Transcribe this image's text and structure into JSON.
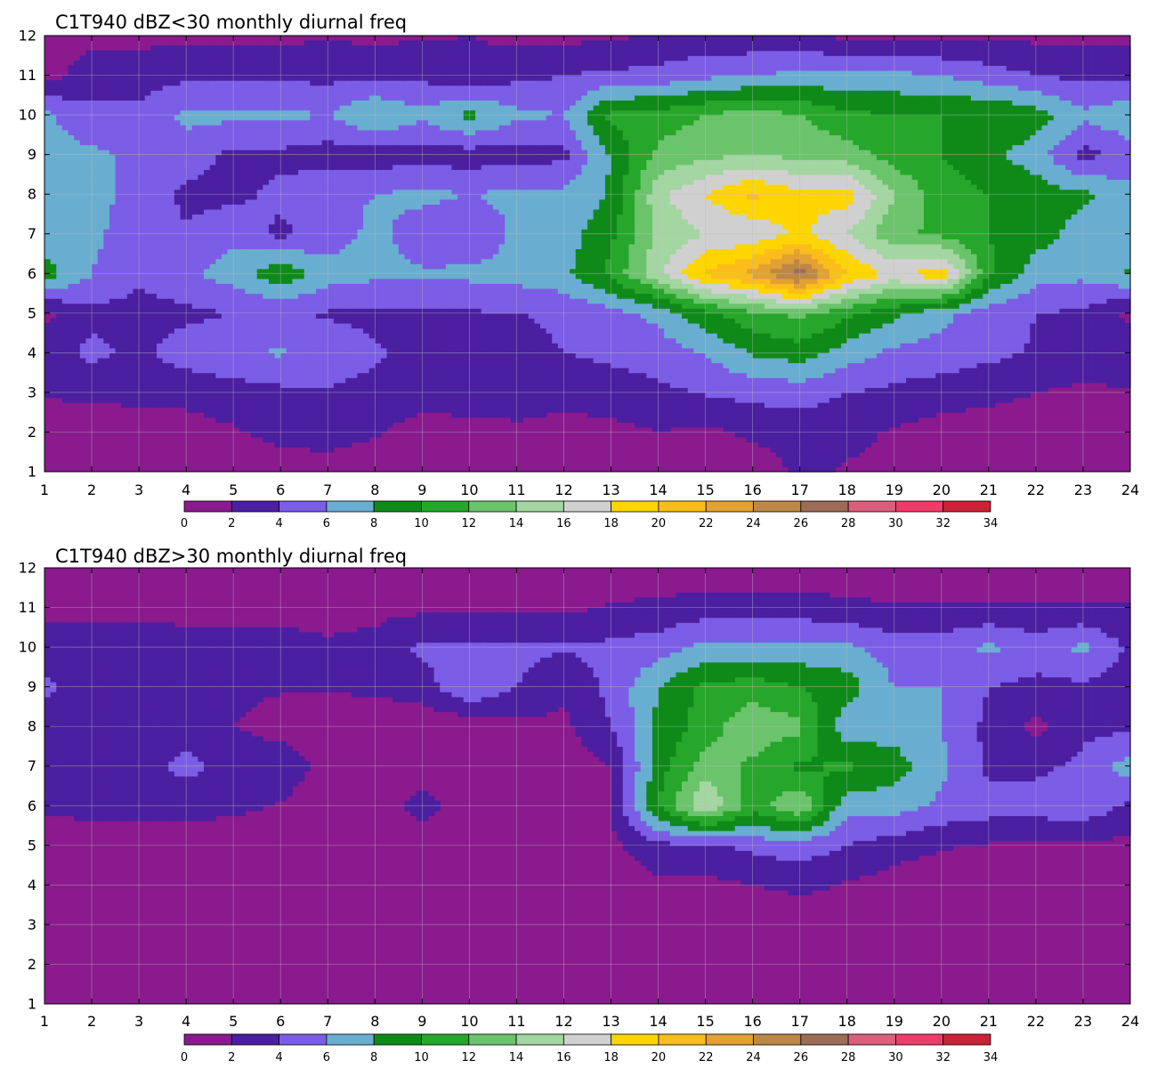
{
  "colors": {
    "levels": [
      0,
      2,
      4,
      6,
      8,
      10,
      12,
      14,
      16,
      18,
      20,
      22,
      24,
      26,
      28,
      30,
      32,
      34
    ],
    "fills": [
      "#8a1a8e",
      "#4b1fa0",
      "#7b5de6",
      "#69aed0",
      "#0f8a19",
      "#26a62a",
      "#6bc46b",
      "#a3d6a0",
      "#d0d0d0",
      "#ffd500",
      "#fbbd1b",
      "#e3a133",
      "#bd8746",
      "#9c6c57",
      "#d95f7c",
      "#ef3c69",
      "#cc2237"
    ],
    "contour_line": "#f2a720",
    "grid_line": "#bdbdbd"
  },
  "chart_data": [
    {
      "type": "heatmap",
      "title": "C1T940 dBZ<30 monthly diurnal freq",
      "x_ticks": [
        "1",
        "2",
        "3",
        "4",
        "5",
        "6",
        "7",
        "8",
        "9",
        "10",
        "11",
        "12",
        "13",
        "14",
        "15",
        "16",
        "17",
        "18",
        "19",
        "20",
        "21",
        "22",
        "23",
        "24"
      ],
      "y_ticks": [
        "1",
        "2",
        "3",
        "4",
        "5",
        "6",
        "7",
        "8",
        "9",
        "10",
        "11",
        "12"
      ],
      "xlim": [
        1,
        24
      ],
      "ylim": [
        1,
        12
      ],
      "colorbar_ticks": [
        "0",
        "2",
        "4",
        "6",
        "8",
        "10",
        "12",
        "14",
        "16",
        "18",
        "20",
        "22",
        "24",
        "26",
        "28",
        "30",
        "32",
        "34"
      ],
      "grid": true,
      "values": [
        [
          0.5,
          0.8,
          0.5,
          0.5,
          1.0,
          1.2,
          0.8,
          0.5,
          0.2,
          0.5,
          1.2,
          1.2,
          1.2,
          1.5,
          0.5,
          0.5,
          2.5,
          1.8,
          1.5,
          1.0,
          0.5,
          0.5,
          0.5,
          0.5
        ],
        [
          0.8,
          1.2,
          1.0,
          1.2,
          1.8,
          2.5,
          3.0,
          2.2,
          1.0,
          1.5,
          1.8,
          1.5,
          1.5,
          2.0,
          1.5,
          2.5,
          3.0,
          2.5,
          1.8,
          1.0,
          1.0,
          1.0,
          1.0,
          1.0
        ],
        [
          2.2,
          2.3,
          2.5,
          2.6,
          3.0,
          3.5,
          3.8,
          3.5,
          3.0,
          2.8,
          2.5,
          2.5,
          2.8,
          3.5,
          4.2,
          4.6,
          4.8,
          4.0,
          3.5,
          3.0,
          2.5,
          2.0,
          1.5,
          1.8
        ],
        [
          3.0,
          4.5,
          3.5,
          5.0,
          5.8,
          6.2,
          5.0,
          4.2,
          3.5,
          3.2,
          3.5,
          4.0,
          4.5,
          5.0,
          6.0,
          8.2,
          9.0,
          7.0,
          5.5,
          5.2,
          4.5,
          3.8,
          3.5,
          3.5
        ],
        [
          1.5,
          3.5,
          3.2,
          3.5,
          4.0,
          4.2,
          3.8,
          3.6,
          3.6,
          3.8,
          3.9,
          4.3,
          5.2,
          6.5,
          9.5,
          11.5,
          12.5,
          10.5,
          8.5,
          6.5,
          5.0,
          4.0,
          3.6,
          1.5
        ],
        [
          9.0,
          6.0,
          4.5,
          5.5,
          7.0,
          9.5,
          7.0,
          6.5,
          6.2,
          6.5,
          6.8,
          7.5,
          10.5,
          15.5,
          20.5,
          22.5,
          27.0,
          20.0,
          17.5,
          19.5,
          10.5,
          6.8,
          6.5,
          8.2
        ],
        [
          6.5,
          6.5,
          4.8,
          4.2,
          5.5,
          3.5,
          5.0,
          6.5,
          5.0,
          4.0,
          6.5,
          7.0,
          9.5,
          14.5,
          16.0,
          16.5,
          18.5,
          16.0,
          12.5,
          11.5,
          10.0,
          9.0,
          7.0,
          7.0
        ],
        [
          6.5,
          6.5,
          5.5,
          3.5,
          3.5,
          4.5,
          5.5,
          6.0,
          6.5,
          6.0,
          6.5,
          6.5,
          8.2,
          15.5,
          18.0,
          20.5,
          18.5,
          19.0,
          14.0,
          11.0,
          10.0,
          9.0,
          8.5,
          6.5
        ],
        [
          6.5,
          6.5,
          5.5,
          5.0,
          3.5,
          3.5,
          3.0,
          3.0,
          3.0,
          3.0,
          3.2,
          3.5,
          8.2,
          12.5,
          13.5,
          14.0,
          13.5,
          13.0,
          11.0,
          10.0,
          8.5,
          7.0,
          3.2,
          5.0
        ],
        [
          6.5,
          4.5,
          4.5,
          6.5,
          6.5,
          6.5,
          6.0,
          8.2,
          6.5,
          8.5,
          6.5,
          6.0,
          10.5,
          11.0,
          12.0,
          13.0,
          12.0,
          10.5,
          10.0,
          10.0,
          10.0,
          9.0,
          6.5,
          7.5
        ],
        [
          1.0,
          3.0,
          3.0,
          3.5,
          3.5,
          3.5,
          3.5,
          3.5,
          3.5,
          2.5,
          3.5,
          4.0,
          4.5,
          4.5,
          5.5,
          6.0,
          6.5,
          6.5,
          6.5,
          6.0,
          5.0,
          4.0,
          3.5,
          3.5
        ],
        [
          1.5,
          1.5,
          1.5,
          1.5,
          1.5,
          1.5,
          1.8,
          1.5,
          1.8,
          2.0,
          1.5,
          1.5,
          1.5,
          2.5,
          2.5,
          2.5,
          2.5,
          1.5,
          1.5,
          1.5,
          1.5,
          1.5,
          1.5,
          1.5
        ]
      ]
    },
    {
      "type": "heatmap",
      "title": "C1T940 dBZ>30 monthly diurnal freq",
      "x_ticks": [
        "1",
        "2",
        "3",
        "4",
        "5",
        "6",
        "7",
        "8",
        "9",
        "10",
        "11",
        "12",
        "13",
        "14",
        "15",
        "16",
        "17",
        "18",
        "19",
        "20",
        "21",
        "22",
        "23",
        "24"
      ],
      "y_ticks": [
        "1",
        "2",
        "3",
        "4",
        "5",
        "6",
        "7",
        "8",
        "9",
        "10",
        "11",
        "12"
      ],
      "xlim": [
        1,
        24
      ],
      "ylim": [
        1,
        12
      ],
      "colorbar_ticks": [
        "0",
        "2",
        "4",
        "6",
        "8",
        "10",
        "12",
        "14",
        "16",
        "18",
        "20",
        "22",
        "24",
        "26",
        "28",
        "30",
        "32",
        "34"
      ],
      "grid": true,
      "values": [
        [
          0.5,
          0.5,
          0.5,
          0.5,
          0.5,
          0.5,
          0.5,
          0.5,
          0.5,
          0.5,
          0.5,
          0.5,
          0.5,
          0.5,
          0.5,
          0.5,
          0.5,
          0.5,
          0.5,
          0.5,
          0.5,
          0.5,
          0.5,
          0.5
        ],
        [
          0.5,
          0.5,
          0.5,
          0.5,
          0.5,
          0.5,
          0.5,
          0.5,
          0.5,
          0.5,
          0.5,
          0.5,
          0.5,
          0.5,
          0.5,
          0.5,
          0.5,
          0.5,
          0.5,
          0.5,
          0.5,
          0.5,
          0.5,
          0.5
        ],
        [
          0.5,
          0.5,
          0.5,
          0.5,
          0.5,
          0.5,
          0.5,
          0.5,
          0.5,
          0.5,
          0.5,
          0.5,
          0.5,
          0.5,
          0.5,
          0.5,
          0.5,
          0.5,
          0.5,
          0.5,
          0.5,
          0.5,
          0.5,
          0.5
        ],
        [
          0.5,
          0.5,
          0.5,
          0.5,
          0.5,
          0.5,
          0.5,
          0.5,
          0.5,
          0.5,
          0.5,
          0.5,
          0.5,
          1.5,
          1.5,
          2.0,
          2.5,
          1.8,
          1.0,
          0.5,
          0.5,
          0.5,
          0.5,
          0.5
        ],
        [
          0.5,
          0.5,
          0.5,
          0.5,
          0.5,
          0.5,
          0.5,
          0.5,
          0.5,
          0.5,
          0.5,
          0.5,
          1.5,
          3.5,
          3.5,
          4.5,
          5.0,
          4.0,
          3.0,
          2.2,
          1.8,
          1.5,
          1.5,
          1.5
        ],
        [
          2.5,
          2.8,
          3.0,
          3.0,
          2.5,
          1.8,
          0.5,
          0.5,
          3.0,
          0.5,
          0.5,
          1.0,
          2.0,
          10.0,
          16.0,
          11.0,
          14.0,
          6.5,
          7.0,
          5.5,
          5.0,
          5.0,
          5.5,
          3.5
        ],
        [
          3.5,
          2.5,
          3.5,
          4.5,
          3.5,
          3.5,
          1.0,
          0.5,
          0.5,
          0.5,
          0.5,
          1.0,
          2.0,
          9.0,
          13.0,
          11.5,
          9.5,
          10.5,
          9.0,
          6.5,
          3.5,
          3.5,
          4.5,
          7.0
        ],
        [
          2.5,
          2.5,
          2.0,
          3.5,
          2.0,
          1.0,
          0.5,
          0.5,
          0.5,
          0.5,
          1.5,
          1.5,
          4.0,
          8.5,
          11.0,
          13.5,
          12.5,
          6.5,
          7.0,
          6.0,
          3.5,
          1.5,
          3.5,
          3.5
        ],
        [
          4.5,
          3.0,
          2.0,
          2.5,
          2.5,
          2.2,
          2.2,
          2.5,
          3.0,
          6.0,
          4.0,
          2.5,
          4.5,
          8.0,
          10.5,
          11.0,
          10.0,
          9.0,
          6.0,
          6.0,
          4.0,
          3.5,
          3.5,
          3.0
        ],
        [
          3.0,
          3.0,
          3.0,
          2.5,
          2.5,
          2.5,
          2.2,
          2.5,
          4.5,
          4.5,
          4.5,
          4.2,
          4.5,
          5.0,
          6.5,
          6.5,
          6.5,
          6.5,
          5.0,
          5.0,
          6.5,
          5.0,
          6.5,
          3.5
        ],
        [
          1.5,
          1.5,
          1.5,
          1.5,
          1.5,
          1.5,
          1.5,
          1.5,
          1.5,
          1.5,
          1.5,
          1.5,
          2.2,
          2.5,
          3.0,
          3.0,
          3.0,
          2.5,
          2.2,
          2.2,
          2.2,
          2.2,
          2.2,
          2.2
        ],
        [
          0.5,
          0.5,
          0.5,
          0.5,
          0.5,
          0.5,
          0.5,
          0.5,
          0.5,
          0.5,
          0.5,
          0.5,
          0.5,
          0.5,
          0.5,
          0.5,
          0.5,
          0.5,
          0.5,
          0.5,
          0.5,
          0.5,
          0.5,
          0.5
        ]
      ]
    }
  ]
}
